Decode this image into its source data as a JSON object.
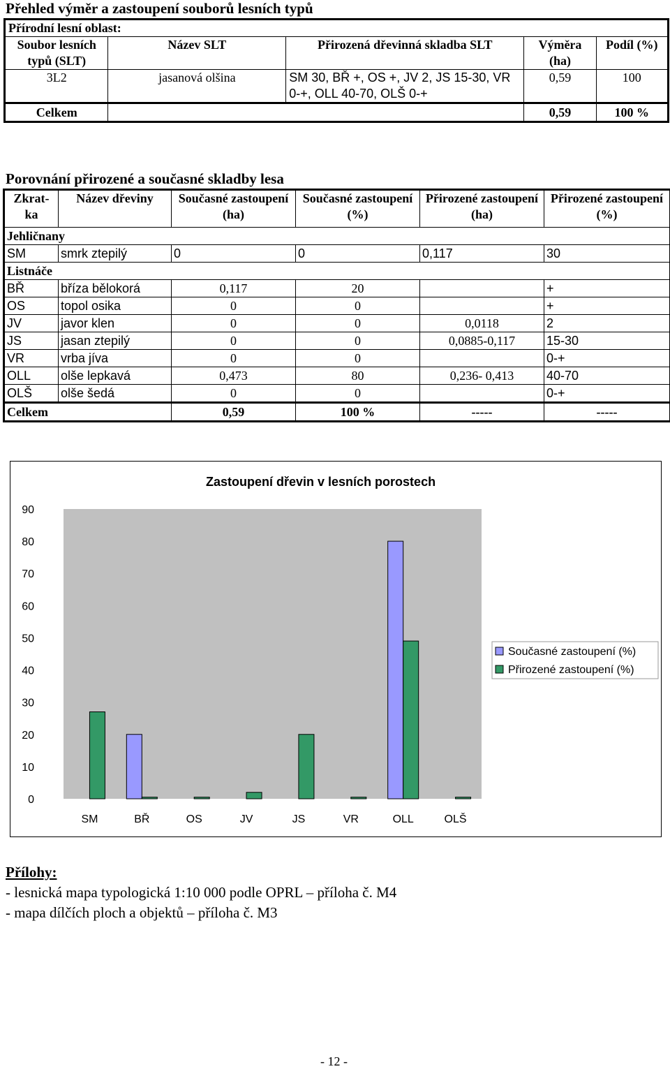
{
  "section1": {
    "title": "Přehled výměr a zastoupení souborů lesních typů",
    "region_label": "Přírodní lesní oblast:",
    "headers": {
      "slt": "Soubor lesních typů (SLT)",
      "name": "Název SLT",
      "composition": "Přirozená dřevinná skladba SLT",
      "area": "Výměra (ha)",
      "share": "Podíl (%)"
    },
    "rows": [
      {
        "code": "3L2",
        "name": "jasanová olšina",
        "composition": "SM 30, BŘ +, OS +, JV 2, JS 15-30, VR 0-+, OLL 40-70, OLŠ 0-+",
        "area": "0,59",
        "share": "100"
      }
    ],
    "total": {
      "label": "Celkem",
      "area": "0,59",
      "share": "100 %"
    }
  },
  "section2": {
    "title": "Porovnání přirozené a současné skladby lesa",
    "headers": {
      "abbr": "Zkrat- ka",
      "name": "Název dřeviny",
      "cur_ha": "Současné zastoupení (ha)",
      "cur_pct": "Současné zastoupení (%)",
      "nat_ha": "Přirozené zastoupení (ha)",
      "nat_pct": "Přirozené zastoupení (%)"
    },
    "group_conifers": "Jehličnany",
    "conifers": [
      {
        "abbr": "SM",
        "name": "smrk ztepilý",
        "cur_ha": "0",
        "cur_pct": "0",
        "nat_ha": "0,117",
        "nat_pct": "30"
      }
    ],
    "group_broadleaves": "Listnáče",
    "broadleaves": [
      {
        "abbr": "BŘ",
        "name": "bříza bělokorá",
        "cur_ha": "0,117",
        "cur_pct": "20",
        "nat_ha": "",
        "nat_pct": "+"
      },
      {
        "abbr": "OS",
        "name": "topol osika",
        "cur_ha": "0",
        "cur_pct": "0",
        "nat_ha": "",
        "nat_pct": "+"
      },
      {
        "abbr": "JV",
        "name": "javor klen",
        "cur_ha": "0",
        "cur_pct": "0",
        "nat_ha": "0,0118",
        "nat_pct": "2"
      },
      {
        "abbr": "JS",
        "name": "jasan ztepilý",
        "cur_ha": "0",
        "cur_pct": "0",
        "nat_ha": "0,0885-0,117",
        "nat_pct": "15-30"
      },
      {
        "abbr": "VR",
        "name": "vrba jíva",
        "cur_ha": "0",
        "cur_pct": "0",
        "nat_ha": "",
        "nat_pct": "0-+"
      },
      {
        "abbr": "OLL",
        "name": "olše lepkavá",
        "cur_ha": "0,473",
        "cur_pct": "80",
        "nat_ha": "0,236- 0,413",
        "nat_pct": "40-70"
      },
      {
        "abbr": "OLŠ",
        "name": "olše šedá",
        "cur_ha": "0",
        "cur_pct": "0",
        "nat_ha": "",
        "nat_pct": "0-+"
      }
    ],
    "total": {
      "label": "Celkem",
      "cur_ha": "0,59",
      "cur_pct": "100 %",
      "nat_ha": "-----",
      "nat_pct": "-----"
    }
  },
  "chart_data": {
    "type": "bar",
    "title": "Zastoupení dřevin v lesních porostech",
    "categories": [
      "SM",
      "BŘ",
      "OS",
      "JV",
      "JS",
      "VR",
      "OLL",
      "OLŠ"
    ],
    "series": [
      {
        "name": "Současné zastoupení (%)",
        "color": "#9999ff",
        "values": [
          0,
          20,
          0,
          0,
          0,
          0,
          80,
          0
        ]
      },
      {
        "name": "Přirozené zastoupení (%)",
        "color": "#339966",
        "values": [
          27,
          0.5,
          0.5,
          2,
          20,
          0.5,
          49,
          0.5
        ]
      }
    ],
    "yticks": [
      "0",
      "10",
      "20",
      "30",
      "40",
      "50",
      "60",
      "70",
      "80",
      "90"
    ],
    "ylim": [
      0,
      90
    ],
    "plot_background": "#c0c0c0",
    "legend_position": "right",
    "grid": false
  },
  "attachments": {
    "title": "Přílohy:",
    "items": [
      "- lesnická mapa typologická 1:10 000 podle OPRL – příloha č. M4",
      "- mapa dílčích ploch a objektů – příloha č. M3"
    ]
  },
  "page_number": "- 12 -"
}
